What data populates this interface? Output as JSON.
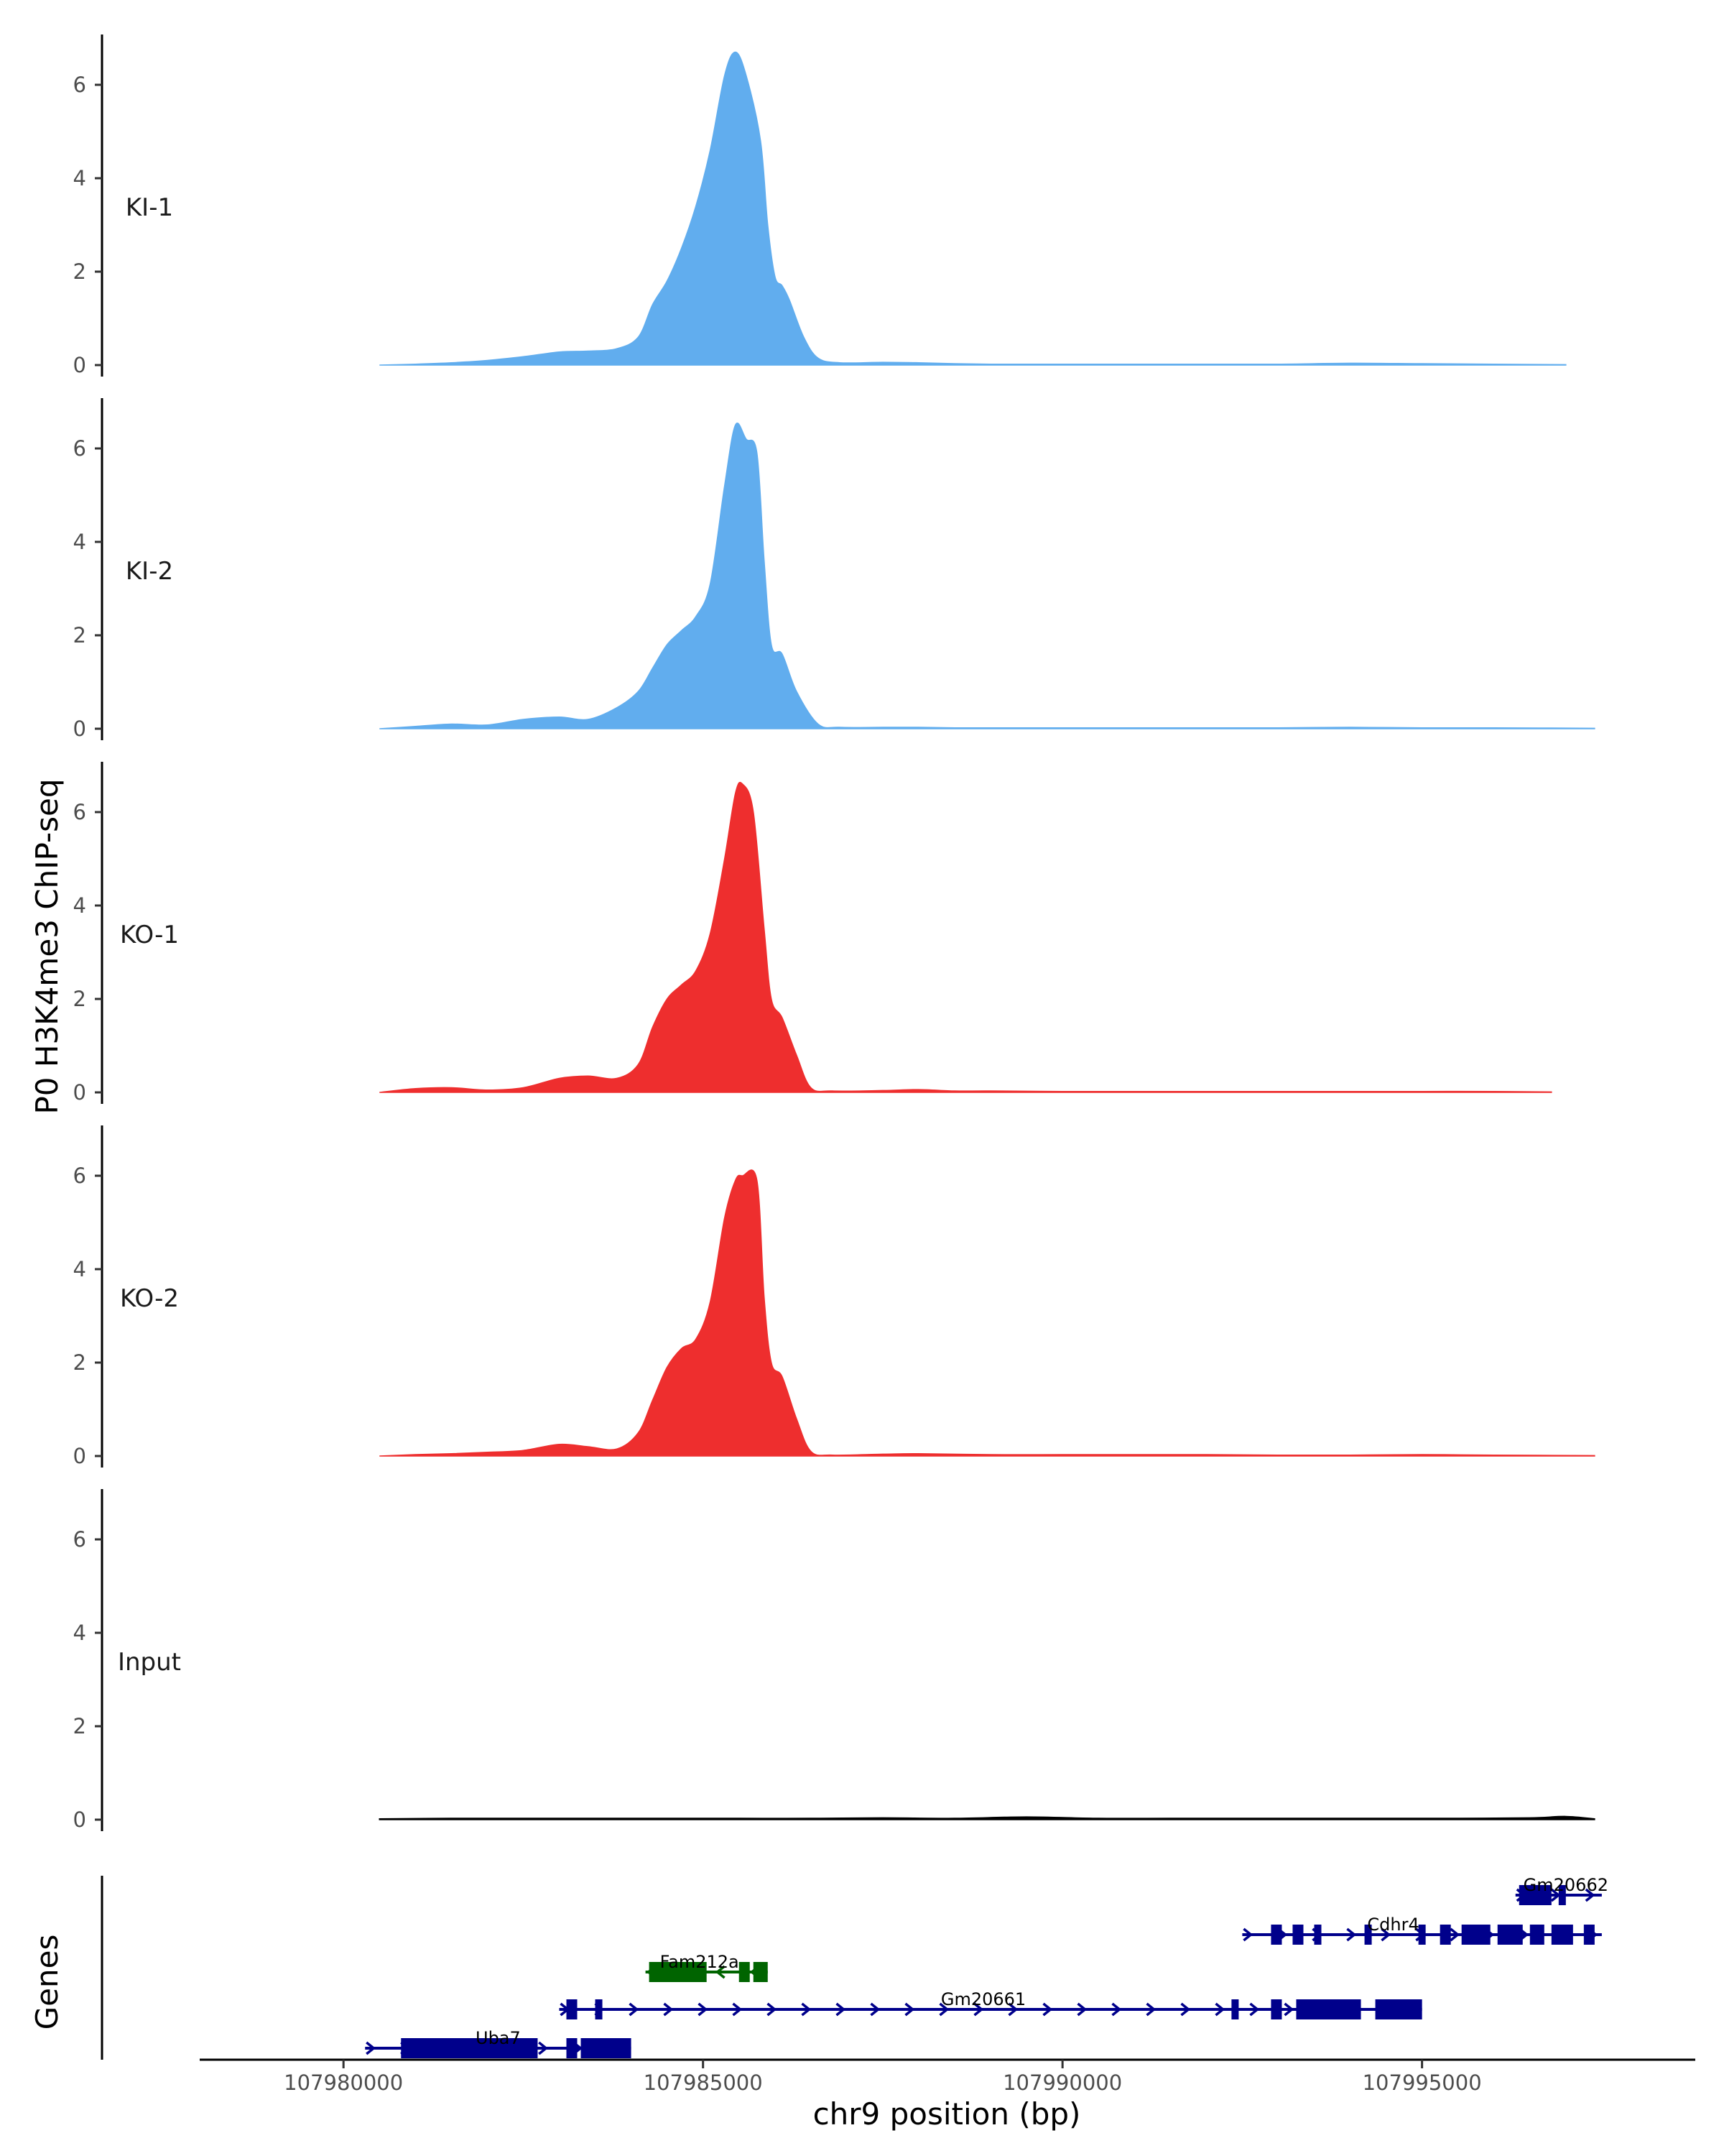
{
  "chart_data": {
    "type": "area",
    "title": "",
    "ylabel": "P0 H3K4me3 ChIP-seq",
    "genes_label": "Genes",
    "xlabel": "chr9 position (bp)",
    "xlim": [
      107978000,
      107998800
    ],
    "xticks": [
      107980000,
      107985000,
      107990000,
      107995000
    ],
    "xtick_labels": [
      "107980000",
      "107985000",
      "107990000",
      "107995000"
    ],
    "ylim": [
      0,
      7
    ],
    "yticks": [
      0,
      2,
      4,
      6
    ],
    "ytick_labels": [
      "0",
      "2",
      "4",
      "6"
    ],
    "colors": {
      "KI": "#61adee",
      "KO": "#ee2e2e",
      "Input": "#000000",
      "gene_plus": "#00008b",
      "gene_minus": "#006400"
    },
    "tracks": [
      {
        "name": "KI-1",
        "color": "#61adee",
        "x": [
          107980500,
          107981000,
          107981500,
          107982000,
          107982500,
          107983000,
          107983400,
          107983800,
          107984100,
          107984300,
          107984500,
          107984700,
          107984900,
          107985100,
          107985300,
          107985450,
          107985600,
          107985800,
          107985900,
          107986000,
          107986100,
          107986200,
          107986400,
          107986600,
          107986900,
          107987500,
          107988000,
          107988500,
          107989000,
          107989500,
          107990000,
          107991000,
          107992000,
          107993000,
          107994000,
          107995000,
          107996000,
          107997000
        ],
        "y": [
          0,
          0.02,
          0.05,
          0.1,
          0.18,
          0.28,
          0.3,
          0.35,
          0.6,
          1.3,
          1.8,
          2.5,
          3.4,
          4.6,
          6.2,
          6.7,
          6.2,
          4.8,
          3.0,
          1.9,
          1.7,
          1.4,
          0.6,
          0.15,
          0.05,
          0.06,
          0.05,
          0.03,
          0.02,
          0.02,
          0.02,
          0.02,
          0.02,
          0.02,
          0.04,
          0.03,
          0.02,
          0.01
        ]
      },
      {
        "name": "KI-2",
        "color": "#61adee",
        "x": [
          107980500,
          107981000,
          107981500,
          107982000,
          107982500,
          107983000,
          107983400,
          107983800,
          107984100,
          107984300,
          107984500,
          107984700,
          107984900,
          107985100,
          107985300,
          107985450,
          107985600,
          107985750,
          107985850,
          107985950,
          107986100,
          107986300,
          107986600,
          107986900,
          107987500,
          107988000,
          107988500,
          107989000,
          107990000,
          107991000,
          107992000,
          107993000,
          107994000,
          107995000,
          107996000,
          107997400
        ],
        "y": [
          0,
          0.05,
          0.1,
          0.08,
          0.2,
          0.25,
          0.2,
          0.45,
          0.8,
          1.3,
          1.8,
          2.1,
          2.4,
          3.1,
          5.2,
          6.5,
          6.2,
          5.9,
          3.6,
          1.8,
          1.6,
          0.8,
          0.1,
          0.03,
          0.03,
          0.03,
          0.02,
          0.02,
          0.02,
          0.02,
          0.02,
          0.02,
          0.03,
          0.02,
          0.02,
          0.01
        ]
      },
      {
        "name": "KO-1",
        "color": "#ee2e2e",
        "x": [
          107980500,
          107981000,
          107981500,
          107982000,
          107982500,
          107983000,
          107983400,
          107983800,
          107984100,
          107984300,
          107984500,
          107984700,
          107984900,
          107985100,
          107985300,
          107985450,
          107985550,
          107985700,
          107985850,
          107985950,
          107986100,
          107986300,
          107986500,
          107986800,
          107987500,
          107988000,
          107988500,
          107989000,
          107990000,
          107991000,
          107992000,
          107993000,
          107994000,
          107995000,
          107996000,
          107996800
        ],
        "y": [
          0,
          0.08,
          0.1,
          0.05,
          0.1,
          0.3,
          0.35,
          0.3,
          0.6,
          1.4,
          2.0,
          2.3,
          2.6,
          3.4,
          5.0,
          6.4,
          6.6,
          6.0,
          3.5,
          2.0,
          1.6,
          0.8,
          0.1,
          0.03,
          0.04,
          0.06,
          0.03,
          0.03,
          0.02,
          0.02,
          0.02,
          0.02,
          0.02,
          0.02,
          0.02,
          0.01
        ]
      },
      {
        "name": "KO-2",
        "color": "#ee2e2e",
        "x": [
          107980500,
          107981000,
          107981500,
          107982000,
          107982500,
          107983000,
          107983400,
          107983800,
          107984100,
          107984300,
          107984500,
          107984700,
          107984900,
          107985100,
          107985300,
          107985450,
          107985550,
          107985750,
          107985850,
          107985950,
          107986100,
          107986300,
          107986500,
          107986800,
          107987500,
          107988000,
          107989000,
          107990000,
          107991000,
          107992000,
          107993000,
          107994000,
          107995000,
          107996000,
          107997400
        ],
        "y": [
          0,
          0.03,
          0.05,
          0.08,
          0.12,
          0.25,
          0.2,
          0.15,
          0.5,
          1.2,
          1.9,
          2.3,
          2.5,
          3.3,
          5.1,
          5.9,
          6.0,
          5.9,
          3.4,
          2.0,
          1.7,
          0.8,
          0.1,
          0.02,
          0.04,
          0.05,
          0.03,
          0.03,
          0.03,
          0.03,
          0.02,
          0.02,
          0.03,
          0.02,
          0.01
        ]
      },
      {
        "name": "Input",
        "color": "#000000",
        "x": [
          107980500,
          107981500,
          107982500,
          107983500,
          107984500,
          107985500,
          107986500,
          107987500,
          107988500,
          107989500,
          107990500,
          107991500,
          107992500,
          107993500,
          107994500,
          107995500,
          107996500,
          107997000,
          107997400
        ],
        "y": [
          0.02,
          0.03,
          0.03,
          0.03,
          0.03,
          0.03,
          0.03,
          0.04,
          0.03,
          0.06,
          0.03,
          0.03,
          0.03,
          0.03,
          0.03,
          0.03,
          0.04,
          0.07,
          0.02
        ]
      }
    ],
    "genes": [
      {
        "name": "Gm20662",
        "strand": "+",
        "row": 4,
        "start": 107996300,
        "end": 107997500,
        "exons": [
          [
            107996350,
            107996800
          ],
          [
            107996900,
            107997000
          ]
        ],
        "label_x": 107997000
      },
      {
        "name": "Cdhr4",
        "strand": "+",
        "row": 3,
        "start": 107992500,
        "end": 107997500,
        "exons": [
          [
            107992900,
            107993050
          ],
          [
            107993200,
            107993350
          ],
          [
            107993500,
            107993600
          ],
          [
            107994200,
            107994300
          ],
          [
            107994950,
            107995050
          ],
          [
            107995250,
            107995400
          ],
          [
            107995550,
            107995950
          ],
          [
            107996050,
            107996400
          ],
          [
            107996500,
            107996700
          ],
          [
            107996800,
            107997100
          ],
          [
            107997250,
            107997400
          ]
        ],
        "label_x": 107994600
      },
      {
        "name": "Fam212a",
        "strand": "-",
        "row": 2,
        "start": 107984200,
        "end": 107985900,
        "exons": [
          [
            107984250,
            107985050
          ],
          [
            107985500,
            107985650
          ],
          [
            107985700,
            107985900
          ]
        ],
        "label_x": 107984950
      },
      {
        "name": "Gm20661",
        "strand": "+",
        "row": 1,
        "start": 107983000,
        "end": 107995000,
        "exons": [
          [
            107983100,
            107983250
          ],
          [
            107983500,
            107983600
          ],
          [
            107992350,
            107992450
          ],
          [
            107992900,
            107993050
          ],
          [
            107993250,
            107994150
          ],
          [
            107994350,
            107995000
          ]
        ],
        "label_x": 107988900
      },
      {
        "name": "Uba7",
        "strand": "+",
        "row": 0,
        "start": 107980300,
        "end": 107984000,
        "exons": [
          [
            107980800,
            107982700
          ],
          [
            107983100,
            107983250
          ],
          [
            107983300,
            107984000
          ]
        ],
        "label_x": 107982150
      }
    ]
  }
}
